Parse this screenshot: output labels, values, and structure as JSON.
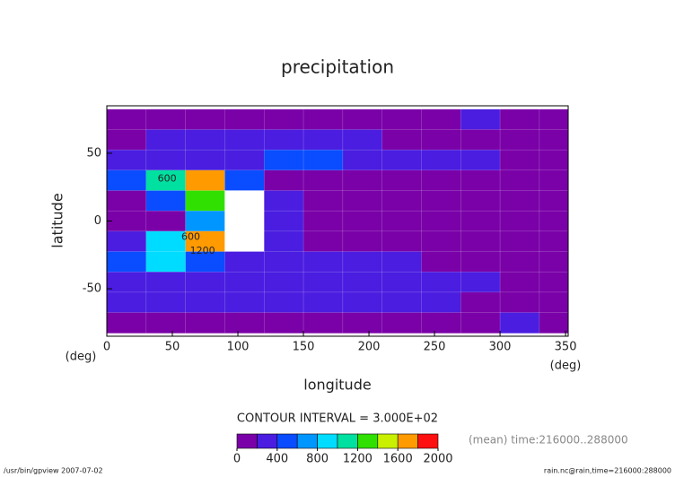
{
  "chart_data": {
    "type": "contour",
    "title": "precipitation",
    "x_label": "longitude",
    "y_label": "latitude",
    "x_unit": "(deg)",
    "y_unit": "(deg)",
    "contour_interval": "CONTOUR INTERVAL = 3.000E+02",
    "time_note": "(mean) time:216000..288000",
    "footer_left": "/usr/bin/gpview  2007-07-02",
    "footer_right": "rain.nc@rain,time=216000:288000",
    "xlim": [
      0,
      352
    ],
    "ylim": [
      -85,
      85
    ],
    "xticks": [
      0,
      50,
      100,
      150,
      200,
      250,
      300,
      350
    ],
    "yticks": [
      -50,
      0,
      50
    ],
    "x": [
      15,
      45,
      75,
      105,
      135,
      165,
      195,
      225,
      255,
      285,
      315,
      345
    ],
    "y": [
      75,
      60,
      45,
      30,
      15,
      0,
      -15,
      -30,
      -45,
      -60,
      -75
    ],
    "z": [
      [
        100,
        100,
        150,
        100,
        100,
        100,
        100,
        100,
        100,
        250,
        100,
        100
      ],
      [
        150,
        250,
        300,
        300,
        300,
        250,
        250,
        150,
        100,
        100,
        100,
        100
      ],
      [
        250,
        300,
        250,
        300,
        500,
        400,
        300,
        300,
        250,
        200,
        100,
        100
      ],
      [
        500,
        1000,
        1600,
        400,
        150,
        100,
        100,
        100,
        100,
        100,
        100,
        100
      ],
      [
        150,
        400,
        1200,
        2200,
        200,
        100,
        100,
        100,
        100,
        100,
        100,
        100
      ],
      [
        100,
        100,
        600,
        2200,
        300,
        100,
        100,
        100,
        100,
        100,
        100,
        100
      ],
      [
        300,
        900,
        1700,
        2200,
        250,
        100,
        100,
        100,
        100,
        100,
        100,
        100
      ],
      [
        400,
        800,
        400,
        300,
        250,
        200,
        200,
        200,
        150,
        100,
        100,
        100
      ],
      [
        300,
        300,
        350,
        300,
        300,
        250,
        300,
        300,
        250,
        200,
        100,
        100
      ],
      [
        250,
        250,
        300,
        250,
        300,
        250,
        250,
        250,
        200,
        150,
        100,
        100
      ],
      [
        100,
        100,
        100,
        100,
        100,
        100,
        100,
        100,
        100,
        100,
        200,
        100
      ]
    ],
    "clim": [
      0,
      2000
    ],
    "cticks": [
      0,
      400,
      800,
      1200,
      1600,
      2000
    ],
    "colors": [
      "#7a00a8",
      "#4a1de0",
      "#0a4cff",
      "#0096ff",
      "#00dcff",
      "#00e0a0",
      "#30e000",
      "#c8f000",
      "#ff9a00",
      "#ff1010"
    ],
    "over_color": "#ffffff",
    "annotations": [
      {
        "text": "600",
        "x": 46,
        "y": 31
      },
      {
        "text": "600",
        "x": 64,
        "y": -12
      },
      {
        "text": "1200",
        "x": 73,
        "y": -22
      }
    ]
  }
}
